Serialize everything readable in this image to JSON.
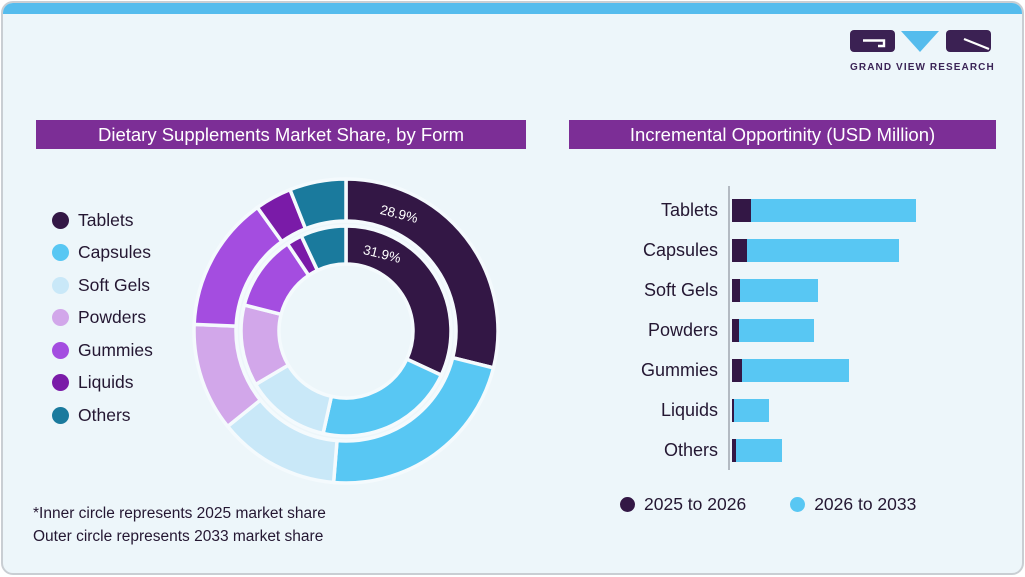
{
  "page": {
    "background": "#ffffff",
    "card_background": "#edf6fa",
    "top_strip_color": "#55bced",
    "border_color": "#c9ced3",
    "accent_purple": "#7c2e96",
    "text_color": "#241732",
    "gap_color": "#f4fafd",
    "axis_color": "#b3bac2"
  },
  "logo": {
    "text": "GRAND VIEW RESEARCH",
    "mark_dark": "#3b2153",
    "mark_blue": "#55bced"
  },
  "left_panel": {
    "title": "Dietary Supplements Market Share, by Form",
    "legend": [
      {
        "label": "Tablets",
        "color": "#331745"
      },
      {
        "label": "Capsules",
        "color": "#58c7f3"
      },
      {
        "label": "Soft Gels",
        "color": "#c9e8f8"
      },
      {
        "label": "Powders",
        "color": "#d2a7ea"
      },
      {
        "label": "Gummies",
        "color": "#a44de0"
      },
      {
        "label": "Liquids",
        "color": "#7a1ba8"
      },
      {
        "label": "Others",
        "color": "#1a7a9d"
      }
    ],
    "footnote_lines": [
      "*Inner circle represents 2025 market share",
      "Outer circle represents 2033 market share"
    ]
  },
  "right_panel": {
    "title": "Incremental Opportinity (USD Million)",
    "legend": [
      {
        "label": "2025 to 2026",
        "color": "#331745"
      },
      {
        "label": "2026 to 2033",
        "color": "#58c7f3"
      }
    ]
  },
  "chart_data": [
    {
      "type": "donut",
      "title": "Dietary Supplements Market Share, by Form",
      "categories": [
        "Tablets",
        "Capsules",
        "Soft Gels",
        "Powders",
        "Gummies",
        "Liquids",
        "Others"
      ],
      "colors": [
        "#331745",
        "#58c7f3",
        "#c9e8f8",
        "#d2a7ea",
        "#a44de0",
        "#7a1ba8",
        "#1a7a9d"
      ],
      "rings": [
        {
          "name": "2025 market share (inner circle)",
          "values": [
            31.9,
            21.6,
            13.0,
            12.5,
            11.6,
            2.4,
            7.0
          ]
        },
        {
          "name": "2033 market share (outer circle)",
          "values": [
            28.9,
            22.4,
            12.9,
            11.5,
            14.4,
            3.9,
            6.0
          ]
        }
      ],
      "visible_labels": [
        {
          "text": "28.9%",
          "ring": "outer",
          "category": "Tablets"
        },
        {
          "text": "31.9%",
          "ring": "inner",
          "category": "Tablets"
        }
      ],
      "start_angle_deg": 0,
      "direction": "clockwise",
      "note": "only the two Tablets labels are printed; other ring values estimated from arc angles"
    },
    {
      "type": "bar",
      "orientation": "horizontal",
      "stacked": true,
      "title": "Incremental Opportinity (USD Million)",
      "categories": [
        "Tablets",
        "Capsules",
        "Soft Gels",
        "Powders",
        "Gummies",
        "Liquids",
        "Others"
      ],
      "series": [
        {
          "name": "2025 to 2026",
          "color": "#331745",
          "values": [
            19,
            15,
            8,
            7,
            10,
            2,
            4
          ]
        },
        {
          "name": "2026 to 2033",
          "color": "#58c7f3",
          "values": [
            165,
            152,
            78,
            75,
            107,
            35,
            46
          ]
        }
      ],
      "note": "no numeric axis shown; values are relative bar lengths estimated from pixels",
      "legend_position": "bottom"
    }
  ]
}
